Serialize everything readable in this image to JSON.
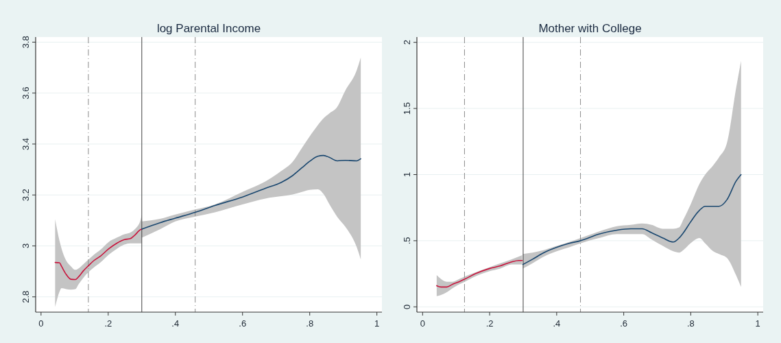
{
  "chart_data": [
    {
      "type": "line",
      "title": "log Parental Income",
      "xlim": [
        -0.016,
        1.015
      ],
      "ylim": [
        2.74,
        3.82
      ],
      "xticks": [
        {
          "value": 0,
          "label": "0"
        },
        {
          "value": 0.2,
          "label": ".2"
        },
        {
          "value": 0.4,
          "label": ".4"
        },
        {
          "value": 0.6,
          "label": ".6"
        },
        {
          "value": 0.8,
          "label": ".8"
        },
        1
      ],
      "yticks": [
        2.8,
        3,
        3.2,
        3.4,
        3.6,
        3.8
      ],
      "grid": "y",
      "ref_lines": [
        {
          "axis": "x",
          "value": 0.141,
          "line_style": "dashed",
          "color": "#8a8a8a"
        },
        {
          "axis": "x",
          "value": 0.3,
          "line_style": "solid",
          "color": "#404040"
        },
        {
          "axis": "x",
          "value": 0.459,
          "line_style": "dashed",
          "color": "#8a8a8a"
        }
      ],
      "series": [
        {
          "color": "#c8143c",
          "x": [
            0.042,
            0.055,
            0.061,
            0.075,
            0.089,
            0.102,
            0.112,
            0.126,
            0.141,
            0.157,
            0.177,
            0.201,
            0.225,
            0.248,
            0.265,
            0.279,
            0.296,
            0.3
          ],
          "values": [
            2.935,
            2.934,
            2.92,
            2.888,
            2.869,
            2.868,
            2.879,
            2.902,
            2.922,
            2.942,
            2.96,
            2.988,
            3.01,
            3.025,
            3.028,
            3.042,
            3.064,
            3.066
          ],
          "lower": [
            2.76,
            2.82,
            2.834,
            2.83,
            2.828,
            2.83,
            2.85,
            2.875,
            2.897,
            2.915,
            2.935,
            2.965,
            2.988,
            3.005,
            3.01,
            3.01,
            3.01,
            3.01
          ],
          "upper": [
            3.105,
            3.02,
            2.99,
            2.942,
            2.92,
            2.906,
            2.912,
            2.928,
            2.946,
            2.965,
            2.985,
            3.015,
            3.032,
            3.046,
            3.052,
            3.065,
            3.1,
            3.123
          ]
        },
        {
          "color": "#1a476f",
          "x": [
            0.3,
            0.354,
            0.4,
            0.459,
            0.518,
            0.6,
            0.668,
            0.715,
            0.749,
            0.777,
            0.8,
            0.824,
            0.841,
            0.858,
            0.882,
            0.906,
            0.94,
            0.952
          ],
          "values": [
            3.066,
            3.091,
            3.109,
            3.132,
            3.159,
            3.192,
            3.226,
            3.249,
            3.276,
            3.307,
            3.332,
            3.352,
            3.355,
            3.348,
            3.334,
            3.336,
            3.334,
            3.342
          ],
          "lower": [
            3.032,
            3.065,
            3.096,
            3.115,
            3.132,
            3.163,
            3.186,
            3.195,
            3.202,
            3.212,
            3.22,
            3.222,
            3.204,
            3.165,
            3.114,
            3.075,
            2.995,
            2.947
          ],
          "upper": [
            3.096,
            3.106,
            3.123,
            3.143,
            3.163,
            3.212,
            3.253,
            3.294,
            3.33,
            3.385,
            3.43,
            3.474,
            3.501,
            3.52,
            3.546,
            3.61,
            3.69,
            3.74
          ]
        }
      ]
    },
    {
      "type": "line",
      "title": "Mother with College",
      "xlim": [
        -0.017,
        1.016
      ],
      "ylim": [
        -0.04,
        2.04
      ],
      "xticks": [
        {
          "value": 0,
          "label": "0"
        },
        {
          "value": 0.2,
          "label": ".2"
        },
        {
          "value": 0.4,
          "label": ".4"
        },
        {
          "value": 0.6,
          "label": ".6"
        },
        {
          "value": 0.8,
          "label": ".8"
        },
        1
      ],
      "yticks": [
        {
          "value": 0,
          "label": "0"
        },
        {
          "value": 0.5,
          "label": ".5"
        },
        1,
        1.5,
        2
      ],
      "grid": "y",
      "ref_lines": [
        {
          "axis": "x",
          "value": 0.125,
          "line_style": "dashed",
          "color": "#8a8a8a"
        },
        {
          "axis": "x",
          "value": 0.3,
          "line_style": "solid",
          "color": "#404040"
        },
        {
          "axis": "x",
          "value": 0.471,
          "line_style": "dashed",
          "color": "#8a8a8a"
        }
      ],
      "series": [
        {
          "color": "#c8143c",
          "x": [
            0.042,
            0.055,
            0.072,
            0.089,
            0.109,
            0.126,
            0.157,
            0.2,
            0.232,
            0.266,
            0.287,
            0.297
          ],
          "values": [
            0.16,
            0.15,
            0.15,
            0.17,
            0.19,
            0.21,
            0.25,
            0.29,
            0.31,
            0.34,
            0.35,
            0.35
          ],
          "lower": [
            0.08,
            0.09,
            0.11,
            0.14,
            0.17,
            0.19,
            0.23,
            0.27,
            0.29,
            0.32,
            0.32,
            0.32
          ],
          "upper": [
            0.24,
            0.21,
            0.19,
            0.19,
            0.21,
            0.23,
            0.26,
            0.3,
            0.33,
            0.36,
            0.38,
            0.39
          ]
        },
        {
          "color": "#1a476f",
          "x": [
            0.299,
            0.328,
            0.362,
            0.4,
            0.437,
            0.471,
            0.526,
            0.58,
            0.621,
            0.655,
            0.683,
            0.717,
            0.748,
            0.765,
            0.778,
            0.799,
            0.826,
            0.843,
            0.867,
            0.884,
            0.908,
            0.935,
            0.95
          ],
          "values": [
            0.32,
            0.36,
            0.41,
            0.45,
            0.48,
            0.5,
            0.55,
            0.58,
            0.59,
            0.59,
            0.56,
            0.52,
            0.49,
            0.52,
            0.56,
            0.64,
            0.73,
            0.76,
            0.76,
            0.76,
            0.81,
            0.95,
            1.0
          ],
          "lower": [
            0.29,
            0.33,
            0.38,
            0.42,
            0.45,
            0.48,
            0.52,
            0.55,
            0.55,
            0.55,
            0.51,
            0.46,
            0.42,
            0.41,
            0.43,
            0.48,
            0.52,
            0.48,
            0.42,
            0.4,
            0.37,
            0.24,
            0.15
          ],
          "upper": [
            0.4,
            0.41,
            0.43,
            0.46,
            0.49,
            0.52,
            0.57,
            0.61,
            0.62,
            0.63,
            0.62,
            0.59,
            0.59,
            0.6,
            0.66,
            0.77,
            0.93,
            1.0,
            1.07,
            1.13,
            1.24,
            1.65,
            1.86
          ]
        }
      ]
    }
  ]
}
